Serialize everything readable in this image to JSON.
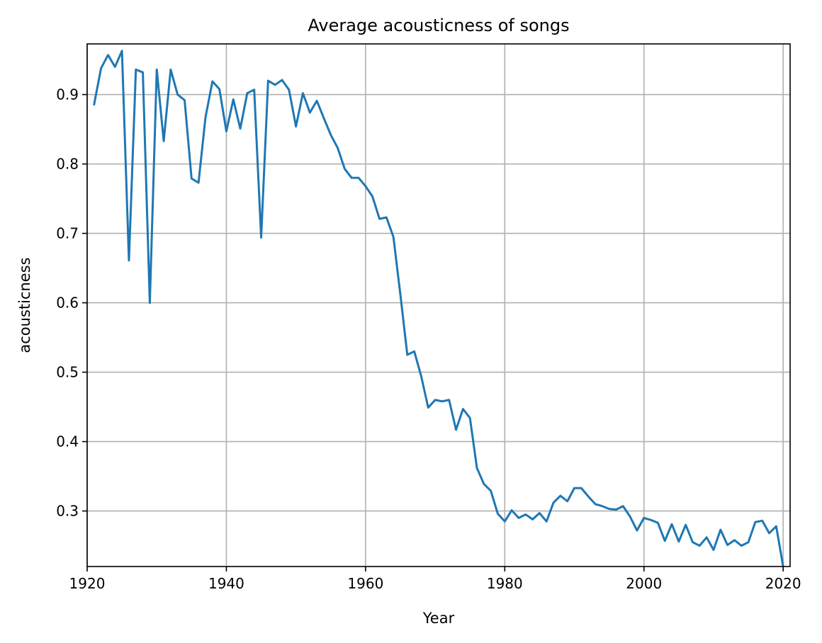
{
  "chart_data": {
    "type": "line",
    "title": "Average acousticness of songs",
    "xlabel": "Year",
    "ylabel": "acousticness",
    "xlim": [
      1920,
      2021
    ],
    "ylim": [
      0.22,
      0.973
    ],
    "xticks": [
      1920,
      1940,
      1960,
      1980,
      2000,
      2020
    ],
    "xtick_labels": [
      "1920",
      "1940",
      "1960",
      "1980",
      "2000",
      "2020"
    ],
    "yticks": [
      0.3,
      0.4,
      0.5,
      0.6,
      0.7,
      0.8,
      0.9
    ],
    "ytick_labels": [
      "0.3",
      "0.4",
      "0.5",
      "0.6",
      "0.7",
      "0.8",
      "0.9"
    ],
    "grid": true,
    "line_color": "#1f77b4",
    "series": [
      {
        "x": [
          1921,
          1922,
          1923,
          1924,
          1925,
          1926,
          1927,
          1928,
          1929,
          1930,
          1931,
          1932,
          1933,
          1934,
          1935,
          1936,
          1937,
          1938,
          1939,
          1940,
          1941,
          1942,
          1943,
          1944,
          1945,
          1946,
          1947,
          1948,
          1949,
          1950,
          1951,
          1952,
          1953,
          1954,
          1955,
          1956,
          1957,
          1958,
          1959,
          1960,
          1961,
          1962,
          1963,
          1964,
          1965,
          1966,
          1967,
          1968,
          1969,
          1970,
          1971,
          1972,
          1973,
          1974,
          1975,
          1976,
          1977,
          1978,
          1979,
          1980,
          1981,
          1982,
          1983,
          1984,
          1985,
          1986,
          1987,
          1988,
          1989,
          1990,
          1991,
          1992,
          1993,
          1994,
          1995,
          1996,
          1997,
          1998,
          1999,
          2000,
          2001,
          2002,
          2003,
          2004,
          2005,
          2006,
          2007,
          2008,
          2009,
          2010,
          2011,
          2012,
          2013,
          2014,
          2015,
          2016,
          2017,
          2018,
          2019,
          2020
        ],
        "y": [
          0.886,
          0.938,
          0.957,
          0.94,
          0.963,
          0.661,
          0.936,
          0.932,
          0.6,
          0.936,
          0.833,
          0.936,
          0.9,
          0.892,
          0.779,
          0.773,
          0.867,
          0.919,
          0.908,
          0.847,
          0.893,
          0.851,
          0.902,
          0.907,
          0.694,
          0.92,
          0.914,
          0.921,
          0.907,
          0.854,
          0.902,
          0.874,
          0.891,
          0.866,
          0.842,
          0.823,
          0.793,
          0.78,
          0.78,
          0.768,
          0.753,
          0.721,
          0.723,
          0.695,
          0.612,
          0.525,
          0.53,
          0.494,
          0.449,
          0.46,
          0.458,
          0.46,
          0.417,
          0.447,
          0.434,
          0.362,
          0.339,
          0.329,
          0.296,
          0.285,
          0.301,
          0.29,
          0.295,
          0.288,
          0.297,
          0.285,
          0.312,
          0.322,
          0.314,
          0.333,
          0.333,
          0.321,
          0.31,
          0.307,
          0.303,
          0.302,
          0.307,
          0.292,
          0.272,
          0.29,
          0.287,
          0.283,
          0.257,
          0.281,
          0.256,
          0.28,
          0.255,
          0.25,
          0.262,
          0.244,
          0.273,
          0.251,
          0.258,
          0.25,
          0.255,
          0.284,
          0.286,
          0.268,
          0.278,
          0.22
        ]
      }
    ]
  }
}
